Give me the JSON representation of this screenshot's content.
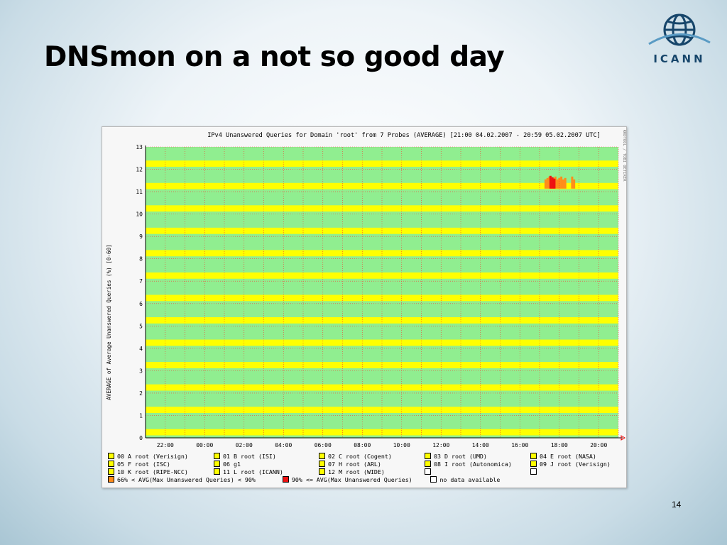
{
  "slide": {
    "title": "DNSmon on a not so good day",
    "page_number": "14",
    "logo_text": "ICANN"
  },
  "colors": {
    "plot_bg": "#90ee90",
    "band": "#ffff00",
    "grid": "#ff3333",
    "orange": "#ff8c1a",
    "red": "#ee1111",
    "white": "#ffffff"
  },
  "chart_data": {
    "type": "heatmap",
    "title": "IPv4 Unanswered Queries for Domain 'root' from 7 Probes (AVERAGE)  [21:00 04.02.2007 - 20:59 05.02.2007 UTC]",
    "ylabel": "AVERAGE of Average Unanswered Queries (%) [0-60]",
    "side_text": "RRDTOOL / TOBI OETIKER",
    "xlim": [
      "21:00 04.02.2007",
      "20:59 05.02.2007"
    ],
    "ylim": [
      0,
      13
    ],
    "x_ticks": [
      "22:00",
      "00:00",
      "02:00",
      "04:00",
      "06:00",
      "08:00",
      "10:00",
      "12:00",
      "14:00",
      "16:00",
      "18:00",
      "20:00"
    ],
    "x_tick_hours": [
      1,
      3,
      5,
      7,
      9,
      11,
      13,
      15,
      17,
      19,
      21,
      23
    ],
    "y_ticks": [
      "0",
      "1",
      "2",
      "3",
      "4",
      "5",
      "6",
      "7",
      "8",
      "9",
      "10",
      "11",
      "12",
      "13"
    ],
    "y_tick_values": [
      0,
      1,
      2,
      3,
      4,
      5,
      6,
      7,
      8,
      9,
      10,
      11,
      12,
      13
    ],
    "grid": true,
    "series": [
      {
        "level": 0,
        "name": "00 A root (Verisign)"
      },
      {
        "level": 1,
        "name": "01 B root (ISI)"
      },
      {
        "level": 2,
        "name": "02 C root (Cogent)"
      },
      {
        "level": 3,
        "name": "03 D root (UMD)"
      },
      {
        "level": 4,
        "name": "04 E root (NASA)"
      },
      {
        "level": 5,
        "name": "05 F root (ISC)"
      },
      {
        "level": 6,
        "name": "06 g1"
      },
      {
        "level": 7,
        "name": "07 H root (ARL)"
      },
      {
        "level": 8,
        "name": "08 I root (Autonomica)"
      },
      {
        "level": 9,
        "name": "09 J root (Verisign)"
      },
      {
        "level": 10,
        "name": "10 K root (RIPE-NCC)"
      },
      {
        "level": 11,
        "name": "11 L root (ICANN)"
      },
      {
        "level": 12,
        "name": "12 M root (WIDE)"
      }
    ],
    "orange_spikes_hours": [
      20.25,
      20.35,
      20.45,
      20.55,
      20.65,
      20.75,
      20.85,
      20.95,
      21.05,
      21.15,
      21.25,
      21.6,
      21.7
    ],
    "red_spikes_hours": [
      20.5,
      20.6,
      20.7
    ],
    "legend": [
      {
        "label": "00 A root (Verisign)",
        "swatch": "band"
      },
      {
        "label": "01 B root (ISI)",
        "swatch": "band"
      },
      {
        "label": "02 C root (Cogent)",
        "swatch": "band"
      },
      {
        "label": "03 D root (UMD)",
        "swatch": "band"
      },
      {
        "label": "04 E root (NASA)",
        "swatch": "band"
      },
      {
        "label": "05 F root (ISC)",
        "swatch": "band"
      },
      {
        "label": "06 g1",
        "swatch": "band"
      },
      {
        "label": "07 H root (ARL)",
        "swatch": "band"
      },
      {
        "label": "08 I root (Autonomica)",
        "swatch": "band"
      },
      {
        "label": "09 J root (Verisign)",
        "swatch": "band"
      },
      {
        "label": "10 K root (RIPE-NCC)",
        "swatch": "band"
      },
      {
        "label": "11 L root (ICANN)",
        "swatch": "band"
      },
      {
        "label": "12 M root (WIDE)",
        "swatch": "band"
      },
      {
        "label": "",
        "swatch": "white"
      },
      {
        "label": "",
        "swatch": "white"
      },
      {
        "label": "66% < AVG(Max Unanswered Queries) < 90%",
        "swatch": "orange"
      },
      {
        "label": "90% <= AVG(Max Unanswered Queries)",
        "swatch": "red"
      },
      {
        "label": "no data available",
        "swatch": "white"
      }
    ]
  }
}
